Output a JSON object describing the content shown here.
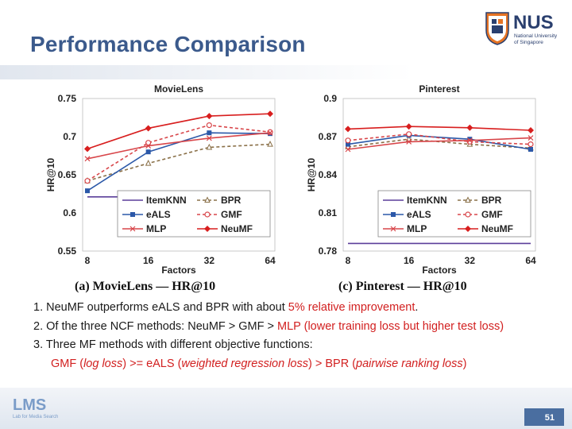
{
  "slide": {
    "title": "Performance Comparison",
    "page_number": "51",
    "logo_nus": {
      "main": "NUS",
      "line1": "National University",
      "line2": "of Singapore"
    },
    "logo_lms": {
      "main": "LMS",
      "sub": "Lab for Media Search"
    }
  },
  "colors": {
    "title": "#3b5a8c",
    "red": "#d22020",
    "itemknn": "#5b3f9a",
    "bpr": "#8a7048",
    "eals": "#2b58a8",
    "gmf": "#d8464a",
    "mlp": "#d8464a",
    "neumf": "#d81e1e"
  },
  "captions": {
    "left": "(a) MovieLens — HR@10",
    "right": "(c) Pinterest — HR@10"
  },
  "bullets": [
    {
      "prefix": "1. NeuMF outperforms eALS and BPR with about ",
      "red": "5% relative improvement",
      "suffix": "."
    },
    {
      "prefix": "2. Of the three NCF methods: NeuMF > GMF > ",
      "red": "MLP (lower training loss but higher test loss)",
      "suffix": ""
    },
    {
      "prefix": "3. Three MF methods with different objective functions:",
      "red": "",
      "suffix": ""
    },
    {
      "p1": "GMF (",
      "i1": "log loss",
      "p2": ") >= eALS (",
      "i2": "weighted regression loss",
      "p3": ") > BPR (",
      "i3": "pairwise ranking loss",
      "p4": ")"
    }
  ],
  "chart_data": [
    {
      "type": "line",
      "title": "MovieLens",
      "xlabel": "Factors",
      "ylabel": "HR@10",
      "categories": [
        "8",
        "16",
        "32",
        "64"
      ],
      "ylim": [
        0.55,
        0.75
      ],
      "yticks": [
        0.55,
        0.6,
        0.65,
        0.7,
        0.75
      ],
      "ytick_labels": [
        "0.55",
        "0.6",
        "0.65",
        "0.7",
        "0.75"
      ],
      "legend_position": "bottom-right",
      "series": [
        {
          "name": "ItemKNN",
          "values": [
            0.621,
            0.621,
            0.621,
            0.621
          ],
          "style": "solid",
          "marker": "none",
          "color": "#5b3f9a"
        },
        {
          "name": "BPR",
          "values": [
            0.642,
            0.665,
            0.686,
            0.69
          ],
          "style": "dashed",
          "marker": "triangle",
          "color": "#8a7048"
        },
        {
          "name": "eALS",
          "values": [
            0.629,
            0.68,
            0.705,
            0.704
          ],
          "style": "solid",
          "marker": "square",
          "color": "#2b58a8"
        },
        {
          "name": "GMF",
          "values": [
            0.642,
            0.692,
            0.715,
            0.706
          ],
          "style": "dashed",
          "marker": "circle",
          "color": "#d8464a"
        },
        {
          "name": "MLP",
          "values": [
            0.671,
            0.688,
            0.698,
            0.705
          ],
          "style": "solid",
          "marker": "x",
          "color": "#d8464a"
        },
        {
          "name": "NeuMF",
          "values": [
            0.684,
            0.711,
            0.727,
            0.73
          ],
          "style": "solid",
          "marker": "diamond",
          "color": "#d81e1e"
        }
      ]
    },
    {
      "type": "line",
      "title": "Pinterest",
      "xlabel": "Factors",
      "ylabel": "HR@10",
      "categories": [
        "8",
        "16",
        "32",
        "64"
      ],
      "ylim": [
        0.78,
        0.9
      ],
      "yticks": [
        0.78,
        0.81,
        0.84,
        0.87,
        0.9
      ],
      "ytick_labels": [
        "0.78",
        "0.81",
        "0.84",
        "0.87",
        "0.9"
      ],
      "legend_position": "bottom-right",
      "series": [
        {
          "name": "ItemKNN",
          "values": [
            0.786,
            0.786,
            0.786,
            0.786
          ],
          "style": "solid",
          "marker": "none",
          "color": "#5b3f9a"
        },
        {
          "name": "BPR",
          "values": [
            0.862,
            0.868,
            0.864,
            0.861
          ],
          "style": "dashed",
          "marker": "triangle",
          "color": "#8a7048"
        },
        {
          "name": "eALS",
          "values": [
            0.864,
            0.871,
            0.868,
            0.86
          ],
          "style": "solid",
          "marker": "square",
          "color": "#2b58a8"
        },
        {
          "name": "GMF",
          "values": [
            0.867,
            0.872,
            0.866,
            0.864
          ],
          "style": "dashed",
          "marker": "circle",
          "color": "#d8464a"
        },
        {
          "name": "MLP",
          "values": [
            0.86,
            0.866,
            0.867,
            0.869
          ],
          "style": "solid",
          "marker": "x",
          "color": "#d8464a"
        },
        {
          "name": "NeuMF",
          "values": [
            0.876,
            0.878,
            0.877,
            0.875
          ],
          "style": "solid",
          "marker": "diamond",
          "color": "#d81e1e"
        }
      ]
    }
  ]
}
